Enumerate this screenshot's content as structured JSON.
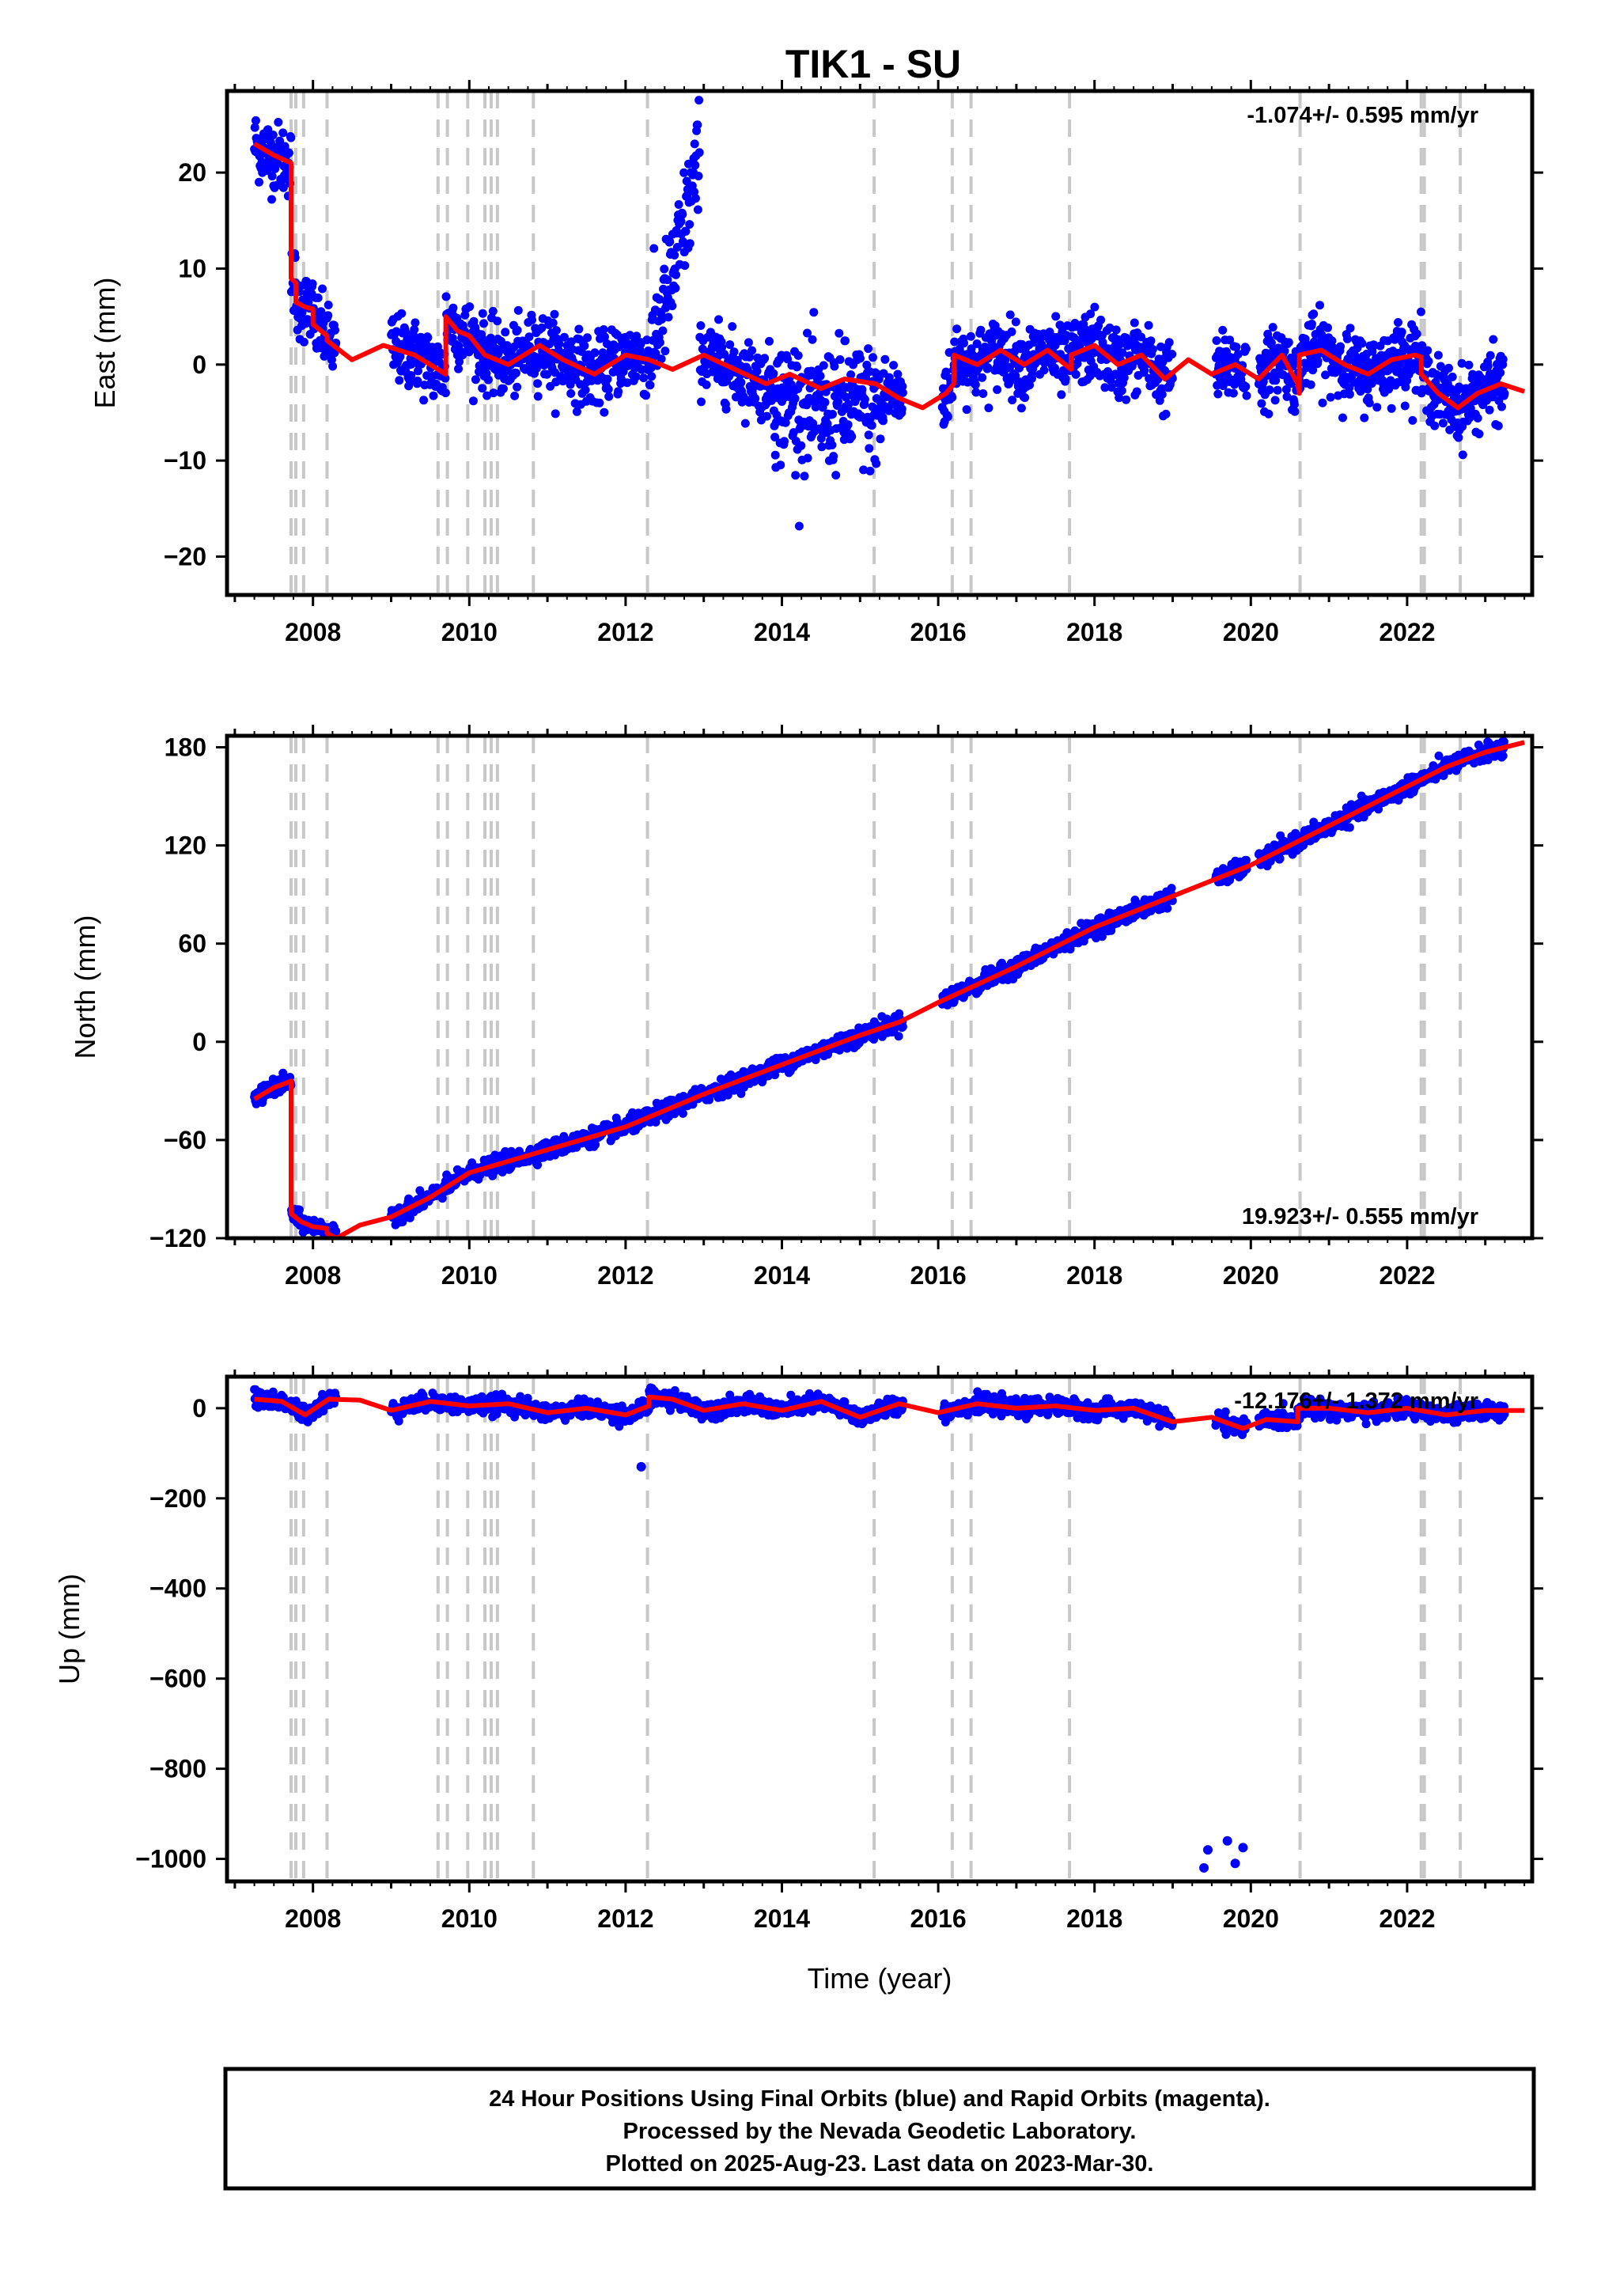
{
  "title": "TIK1 - SU",
  "footer": {
    "lines": [
      "24 Hour Positions Using Final Orbits (blue) and Rapid Orbits (magenta).",
      "Processed by the Nevada Geodetic Laboratory.",
      "Plotted on 2025-Aug-23. Last data on 2023-Mar-30."
    ]
  },
  "colors": {
    "data": "#0000ff",
    "model": "#ff0000",
    "steps": "#c8c8c8",
    "frame": "#000000"
  },
  "chart_data": [
    {
      "type": "scatter",
      "panel": "East",
      "ylabel": "East (mm)",
      "xlabel": "",
      "rate_text": "-1.074+/- 0.595 mm/yr",
      "rate_position": "top-right",
      "xlim": [
        2006.9,
        2023.6
      ],
      "ylim": [
        -24,
        28.5
      ],
      "xticks": [
        2008,
        2010,
        2012,
        2014,
        2016,
        2018,
        2020,
        2022
      ],
      "xtick_labels": [
        "2008",
        "2010",
        "2012",
        "2014",
        "2016",
        "2018",
        "2020",
        "2022"
      ],
      "yticks": [
        -20,
        -10,
        0,
        10,
        20
      ],
      "ytick_labels": [
        "−20",
        "−10",
        "0",
        "10",
        "20"
      ],
      "model_line": {
        "x": [
          2007.25,
          2007.5,
          2007.72,
          2007.72,
          2007.78,
          2007.78,
          2007.9,
          2007.9,
          2008.0,
          2008.0,
          2008.18,
          2008.18,
          2008.5,
          2008.9,
          2009.3,
          2009.7,
          2009.7,
          2009.85,
          2010.0,
          2010.2,
          2010.5,
          2010.9,
          2011.2,
          2011.6,
          2012.0,
          2012.3,
          2012.6,
          2013.0,
          2013.4,
          2013.8,
          2014.1,
          2014.5,
          2014.8,
          2015.2,
          2015.5,
          2015.8,
          2016.1,
          2016.2,
          2016.2,
          2016.5,
          2016.8,
          2017.1,
          2017.4,
          2017.7,
          2017.7,
          2018.0,
          2018.3,
          2018.6,
          2018.9,
          2019.2,
          2019.5,
          2019.8,
          2020.1,
          2020.4,
          2020.6,
          2020.62,
          2020.62,
          2020.9,
          2021.2,
          2021.5,
          2021.8,
          2022.1,
          2022.18,
          2022.18,
          2022.4,
          2022.65,
          2022.9,
          2023.2,
          2023.5
        ],
        "y": [
          23,
          21.8,
          21,
          9,
          8.5,
          6.5,
          6,
          6,
          5.8,
          4.2,
          3,
          2.5,
          0.5,
          2,
          1,
          -1,
          5,
          3.5,
          3,
          1,
          0,
          2,
          0.5,
          -1,
          1,
          0.5,
          -0.5,
          1,
          -0.5,
          -2,
          -1,
          -2.5,
          -1.5,
          -2,
          -3.5,
          -4.5,
          -3,
          -2,
          1,
          0,
          1.5,
          0,
          1.5,
          -0.5,
          1,
          2,
          0,
          1,
          -1.5,
          0.5,
          -1,
          0,
          -1.5,
          1,
          -2,
          -3,
          1,
          1.5,
          0,
          -1,
          0.5,
          1,
          0.8,
          -1,
          -3,
          -4.5,
          -3,
          -2,
          -2.8
        ]
      }
    },
    {
      "type": "scatter",
      "panel": "North",
      "ylabel": "North (mm)",
      "xlabel": "",
      "rate_text": "19.923+/- 0.555 mm/yr",
      "rate_position": "bottom-right",
      "xlim": [
        2006.9,
        2023.6
      ],
      "ylim": [
        -120,
        187
      ],
      "xticks": [
        2008,
        2010,
        2012,
        2014,
        2016,
        2018,
        2020,
        2022
      ],
      "xtick_labels": [
        "2008",
        "2010",
        "2012",
        "2014",
        "2016",
        "2018",
        "2020",
        "2022"
      ],
      "yticks": [
        -120,
        -60,
        0,
        60,
        120,
        180
      ],
      "ytick_labels": [
        "−120",
        "−60",
        "0",
        "60",
        "120",
        "180"
      ],
      "model_line": {
        "x": [
          2007.25,
          2007.5,
          2007.72,
          2007.72,
          2007.85,
          2008.0,
          2008.18,
          2008.18,
          2008.3,
          2008.6,
          2009.0,
          2009.5,
          2010.0,
          2011.0,
          2012.0,
          2013.0,
          2014.0,
          2015.0,
          2015.5,
          2016.0,
          2017.0,
          2018.0,
          2019.0,
          2020.0,
          2021.0,
          2022.0,
          2022.5,
          2023.0,
          2023.5
        ],
        "y": [
          -35,
          -28,
          -24,
          -105,
          -110,
          -113,
          -114,
          -117,
          -120,
          -112,
          -107,
          -95,
          -80,
          -66,
          -52,
          -32,
          -14,
          4,
          12,
          24,
          46,
          70,
          89,
          108,
          132,
          156,
          168,
          177,
          183
        ]
      }
    },
    {
      "type": "scatter",
      "panel": "Up",
      "ylabel": "Up (mm)",
      "xlabel": "Time (year)",
      "rate_text": "-12.176+/- 1.372 mm/yr",
      "rate_position": "top-right",
      "xlim": [
        2006.9,
        2023.6
      ],
      "ylim": [
        -1050,
        70
      ],
      "xticks": [
        2008,
        2010,
        2012,
        2014,
        2016,
        2018,
        2020,
        2022
      ],
      "xtick_labels": [
        "2008",
        "2010",
        "2012",
        "2014",
        "2016",
        "2018",
        "2020",
        "2022"
      ],
      "yticks": [
        -1000,
        -800,
        -600,
        -400,
        -200,
        0
      ],
      "ytick_labels": [
        "−1000",
        "−800",
        "−600",
        "−400",
        "−200",
        "0"
      ],
      "model_line": {
        "x": [
          2007.25,
          2007.6,
          2007.9,
          2008.2,
          2008.6,
          2009.0,
          2009.5,
          2010.0,
          2010.5,
          2011.0,
          2011.5,
          2012.0,
          2012.3,
          2012.3,
          2012.6,
          2013.0,
          2013.5,
          2014.0,
          2014.5,
          2015.0,
          2015.5,
          2016.0,
          2016.5,
          2017.0,
          2017.5,
          2018.0,
          2018.5,
          2019.0,
          2019.5,
          2019.9,
          2020.2,
          2020.6,
          2020.6,
          2021.0,
          2021.5,
          2022.0,
          2022.5,
          2023.0,
          2023.5
        ],
        "y": [
          20,
          15,
          -15,
          20,
          18,
          -5,
          15,
          5,
          10,
          -10,
          0,
          -15,
          5,
          25,
          20,
          -5,
          10,
          -5,
          15,
          -20,
          10,
          -10,
          10,
          0,
          5,
          -5,
          0,
          -30,
          -20,
          -45,
          -25,
          -30,
          0,
          0,
          -10,
          0,
          -15,
          -5,
          -5
        ]
      },
      "outliers": {
        "x": [
          2012.2,
          2019.4,
          2019.45,
          2019.7,
          2019.8,
          2019.9
        ],
        "y": [
          -130,
          -1020,
          -980,
          -960,
          -1010,
          -975
        ]
      }
    }
  ],
  "step_epochs": [
    2007.72,
    2007.78,
    2007.88,
    2008.18,
    2009.6,
    2009.72,
    2009.98,
    2010.2,
    2010.28,
    2010.36,
    2010.82,
    2012.28,
    2015.18,
    2016.18,
    2016.42,
    2017.68,
    2020.63,
    2022.18,
    2022.22,
    2022.68
  ]
}
